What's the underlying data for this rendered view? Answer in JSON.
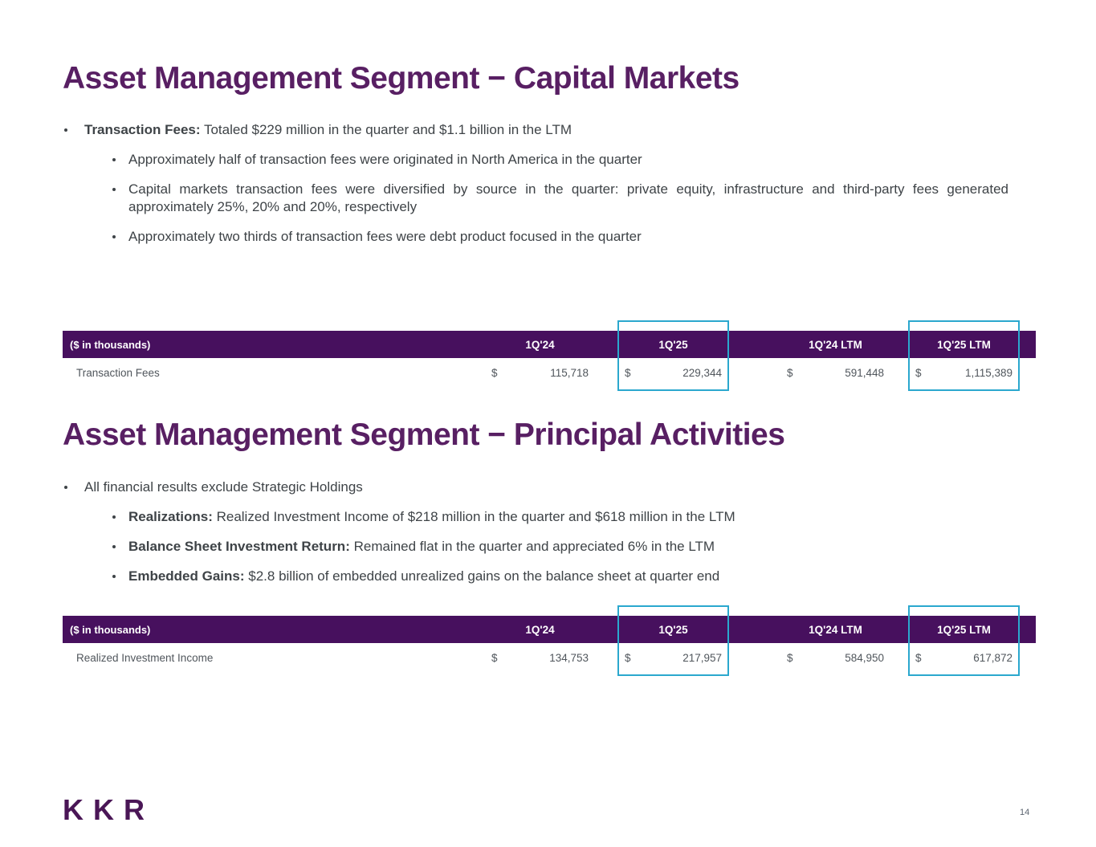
{
  "slide": {
    "page_number": "14",
    "logo_text": "KKR"
  },
  "colors": {
    "title_purple": "#581F63",
    "table_header_purple": "#47105E",
    "highlight_blue": "#2BA8CE",
    "body_text": "#3E4347",
    "table_text": "#50565C"
  },
  "capital_markets": {
    "title": "Asset Management Segment − Capital Markets",
    "bullet_lead": "Transaction Fees:",
    "bullet_text": " Totaled $229 million in the quarter and $1.1 billion in the LTM",
    "sub_bullets": [
      "Approximately half of transaction fees were originated in North America in the quarter",
      "Capital markets transaction fees were diversified by source in the quarter: private equity, infrastructure and third-party fees generated approximately 25%, 20% and 20%, respectively",
      "Approximately two thirds of transaction fees were debt product focused in the quarter"
    ],
    "table": {
      "unit_label": "($ in thousands)",
      "columns": [
        "1Q'24",
        "1Q'25",
        "1Q'24 LTM",
        "1Q'25 LTM"
      ],
      "highlighted_columns": [
        "1Q'25",
        "1Q'25 LTM"
      ],
      "currency": "$",
      "row_label": "Transaction Fees",
      "values": [
        "115,718",
        "229,344",
        "591,448",
        "1,115,389"
      ]
    }
  },
  "principal_activities": {
    "title": "Asset Management Segment − Principal Activities",
    "bullet_text": "All financial results exclude Strategic Holdings",
    "sub_bullets": [
      {
        "lead": "Realizations:",
        "text": " Realized Investment Income of $218 million in the quarter and $618 million in the LTM"
      },
      {
        "lead": "Balance Sheet Investment Return:",
        "text": " Remained flat in the quarter and appreciated 6% in the LTM"
      },
      {
        "lead": "Embedded Gains:",
        "text": " $2.8 billion of embedded unrealized gains on the balance sheet at quarter end"
      }
    ],
    "table": {
      "unit_label": "($ in thousands)",
      "columns": [
        "1Q'24",
        "1Q'25",
        "1Q'24 LTM",
        "1Q'25 LTM"
      ],
      "highlighted_columns": [
        "1Q'25",
        "1Q'25 LTM"
      ],
      "currency": "$",
      "row_label": "Realized Investment Income",
      "values": [
        "134,753",
        "217,957",
        "584,950",
        "617,872"
      ]
    }
  }
}
